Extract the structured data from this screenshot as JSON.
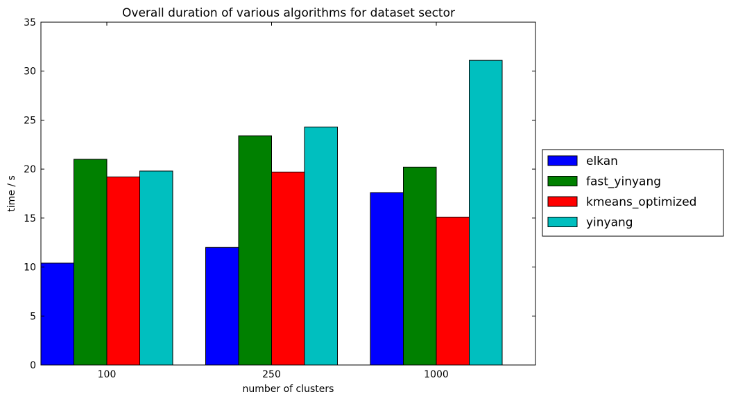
{
  "chart_data": {
    "type": "bar",
    "title": "Overall duration of various algorithms for dataset sector",
    "xlabel": "number of clusters",
    "ylabel": "time / s",
    "categories": [
      "100",
      "250",
      "1000"
    ],
    "ylim": [
      0,
      35
    ],
    "yticks": [
      0,
      5,
      10,
      15,
      20,
      25,
      30,
      35
    ],
    "grid": false,
    "legend_position": "outside-right",
    "series": [
      {
        "name": "elkan",
        "color": "#0000ff",
        "values": [
          10.4,
          12.0,
          17.6
        ]
      },
      {
        "name": "fast_yinyang",
        "color": "#008000",
        "values": [
          21.0,
          23.4,
          20.2
        ]
      },
      {
        "name": "kmeans_optimized",
        "color": "#ff0000",
        "values": [
          19.2,
          19.7,
          15.1
        ]
      },
      {
        "name": "yinyang",
        "color": "#00bfbf",
        "values": [
          19.8,
          24.3,
          31.1
        ]
      }
    ]
  }
}
